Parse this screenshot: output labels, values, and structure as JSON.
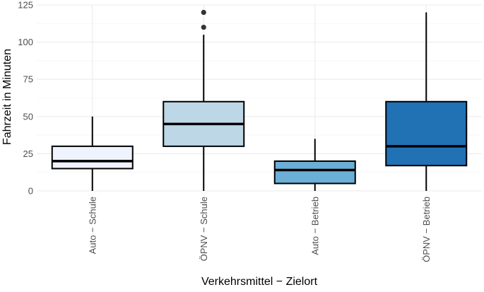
{
  "chart_data": {
    "type": "box",
    "xlabel": "Verkehrsmittel − Zielort",
    "ylabel": "Fahrzeit in Minuten",
    "ylim": [
      0,
      125
    ],
    "yticks": [
      0,
      25,
      50,
      75,
      100,
      125
    ],
    "grid": true,
    "legend": "none",
    "categories": [
      "Auto − Schule",
      "ÖPNV − Schule",
      "Auto − Betrieb",
      "ÖPNV − Betrieb"
    ],
    "boxes": [
      {
        "category": "Auto − Schule",
        "min": 0,
        "q1": 15,
        "median": 20,
        "q3": 30,
        "max": 50,
        "outliers": [],
        "color": "#eff3ff"
      },
      {
        "category": "ÖPNV − Schule",
        "min": 0,
        "q1": 30,
        "median": 45,
        "q3": 60,
        "max": 105,
        "outliers": [
          110,
          120
        ],
        "color": "#bdd7e7"
      },
      {
        "category": "Auto − Betrieb",
        "min": 0,
        "q1": 5,
        "median": 14,
        "q3": 20,
        "max": 35,
        "outliers": [],
        "color": "#6baed6"
      },
      {
        "category": "ÖPNV − Betrieb",
        "min": 0,
        "q1": 17,
        "median": 30,
        "q3": 60,
        "max": 120,
        "outliers": [],
        "color": "#2171b5"
      }
    ]
  }
}
